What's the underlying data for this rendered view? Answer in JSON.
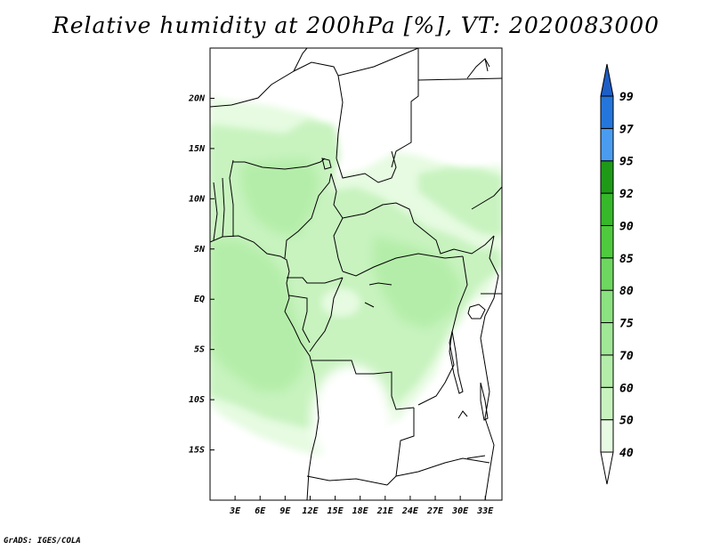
{
  "title": "Relative humidity at 200hPa [%], VT: 2020083000",
  "credit": "GrADS: IGES/COLA",
  "map": {
    "lon_range": [
      0,
      35
    ],
    "lat_range": [
      -20,
      25
    ],
    "lon_ticks": [
      "3E",
      "6E",
      "9E",
      "12E",
      "15E",
      "18E",
      "21E",
      "24E",
      "27E",
      "30E",
      "33E"
    ],
    "lat_ticks": [
      "20N",
      "15N",
      "10N",
      "5N",
      "EQ",
      "5S",
      "10S",
      "15S"
    ],
    "ocean_color": "#ffffff",
    "border_color": "#000000"
  },
  "colorbar": {
    "labels": [
      "40",
      "50",
      "60",
      "70",
      "75",
      "80",
      "85",
      "90",
      "92",
      "95",
      "97",
      "99"
    ],
    "colors": [
      "#ffffff",
      "#e6fbe1",
      "#c8f3bf",
      "#b4eda9",
      "#a0e796",
      "#8be280",
      "#6ed760",
      "#4fca3e",
      "#36b82a",
      "#1e9a17",
      "#4a9cf0",
      "#2576dc",
      "#1d5ec7"
    ]
  }
}
